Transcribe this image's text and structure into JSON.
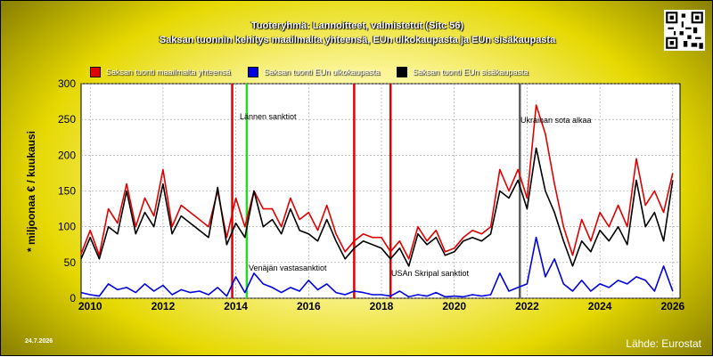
{
  "header": {
    "title": "Tuoteryhmä: Lannoitteet, valmistetut (Sitc 56)",
    "subtitle": "Saksan tuonnin kehitys maailmalta yhteensä, EUn ulkokaupasta ja EUn sisäkaupasta"
  },
  "footer": {
    "date": "24.7.2026",
    "source": "Lähde: Eurostat"
  },
  "colors": {
    "red": "#e00000",
    "blue": "#0000e0",
    "black": "#000000",
    "green": "#22dd22",
    "grey": "#606060"
  },
  "chart_data": {
    "type": "line",
    "ylabel": "* miljoonaa € / kuukausi",
    "ylim": [
      0,
      300
    ],
    "yticks": [
      0,
      50,
      100,
      150,
      200,
      250,
      300
    ],
    "xlim": [
      2009.75,
      2026.2
    ],
    "xticks": [
      2010,
      2012,
      2014,
      2016,
      2018,
      2020,
      2022,
      2024,
      2026
    ],
    "grid": true,
    "legend_position": "top",
    "series": [
      {
        "name": "Saksan tuonti maailmalta yhteensä",
        "color": "#e00000",
        "x": [
          2009.75,
          2010.0,
          2010.25,
          2010.5,
          2010.75,
          2011.0,
          2011.25,
          2011.5,
          2011.75,
          2012.0,
          2012.25,
          2012.5,
          2012.75,
          2013.0,
          2013.25,
          2013.5,
          2013.75,
          2014.0,
          2014.25,
          2014.5,
          2014.75,
          2015.0,
          2015.25,
          2015.5,
          2015.75,
          2016.0,
          2016.25,
          2016.5,
          2016.75,
          2017.0,
          2017.25,
          2017.5,
          2017.75,
          2018.0,
          2018.25,
          2018.5,
          2018.75,
          2019.0,
          2019.25,
          2019.5,
          2019.75,
          2020.0,
          2020.25,
          2020.5,
          2020.75,
          2021.0,
          2021.25,
          2021.5,
          2021.75,
          2022.0,
          2022.25,
          2022.5,
          2022.75,
          2023.0,
          2023.25,
          2023.5,
          2023.75,
          2024.0,
          2024.25,
          2024.5,
          2024.75,
          2025.0,
          2025.25,
          2025.5,
          2025.75,
          2026.0
        ],
        "values": [
          62,
          95,
          60,
          125,
          105,
          160,
          100,
          140,
          115,
          180,
          100,
          130,
          120,
          110,
          100,
          150,
          85,
          140,
          100,
          150,
          125,
          125,
          100,
          140,
          110,
          120,
          95,
          130,
          90,
          65,
          80,
          90,
          85,
          85,
          65,
          80,
          55,
          100,
          80,
          95,
          65,
          70,
          85,
          95,
          90,
          100,
          180,
          150,
          180,
          140,
          270,
          230,
          160,
          100,
          60,
          110,
          80,
          120,
          100,
          130,
          100,
          195,
          130,
          150,
          120,
          175
        ]
      },
      {
        "name": "Saksan tuonti EUn ulkokaupasta",
        "color": "#0000e0",
        "x": [
          2009.75,
          2010.0,
          2010.25,
          2010.5,
          2010.75,
          2011.0,
          2011.25,
          2011.5,
          2011.75,
          2012.0,
          2012.25,
          2012.5,
          2012.75,
          2013.0,
          2013.25,
          2013.5,
          2013.75,
          2014.0,
          2014.25,
          2014.5,
          2014.75,
          2015.0,
          2015.25,
          2015.5,
          2015.75,
          2016.0,
          2016.25,
          2016.5,
          2016.75,
          2017.0,
          2017.25,
          2017.5,
          2017.75,
          2018.0,
          2018.25,
          2018.5,
          2018.75,
          2019.0,
          2019.25,
          2019.5,
          2019.75,
          2020.0,
          2020.25,
          2020.5,
          2020.75,
          2021.0,
          2021.25,
          2021.5,
          2021.75,
          2022.0,
          2022.25,
          2022.5,
          2022.75,
          2023.0,
          2023.25,
          2023.5,
          2023.75,
          2024.0,
          2024.25,
          2024.5,
          2024.75,
          2025.0,
          2025.25,
          2025.5,
          2025.75,
          2026.0
        ],
        "values": [
          8,
          5,
          3,
          20,
          12,
          15,
          8,
          20,
          10,
          18,
          5,
          12,
          8,
          10,
          5,
          15,
          3,
          30,
          8,
          35,
          20,
          15,
          8,
          15,
          10,
          25,
          12,
          20,
          8,
          5,
          10,
          8,
          5,
          5,
          3,
          10,
          2,
          5,
          3,
          8,
          2,
          3,
          2,
          5,
          3,
          5,
          35,
          10,
          15,
          20,
          85,
          30,
          55,
          20,
          10,
          25,
          10,
          20,
          15,
          25,
          20,
          30,
          25,
          10,
          45,
          10
        ]
      },
      {
        "name": "Saksan tuonti EUn sisäkaupasta",
        "color": "#000000",
        "x": [
          2009.75,
          2010.0,
          2010.25,
          2010.5,
          2010.75,
          2011.0,
          2011.25,
          2011.5,
          2011.75,
          2012.0,
          2012.25,
          2012.5,
          2012.75,
          2013.0,
          2013.25,
          2013.5,
          2013.75,
          2014.0,
          2014.25,
          2014.5,
          2014.75,
          2015.0,
          2015.25,
          2015.5,
          2015.75,
          2016.0,
          2016.25,
          2016.5,
          2016.75,
          2017.0,
          2017.25,
          2017.5,
          2017.75,
          2018.0,
          2018.25,
          2018.5,
          2018.75,
          2019.0,
          2019.25,
          2019.5,
          2019.75,
          2020.0,
          2020.25,
          2020.5,
          2020.75,
          2021.0,
          2021.25,
          2021.5,
          2021.75,
          2022.0,
          2022.25,
          2022.5,
          2022.75,
          2023.0,
          2023.25,
          2023.5,
          2023.75,
          2024.0,
          2024.25,
          2024.5,
          2024.75,
          2025.0,
          2025.25,
          2025.5,
          2025.75,
          2026.0
        ],
        "values": [
          55,
          85,
          55,
          100,
          90,
          150,
          90,
          120,
          100,
          160,
          90,
          115,
          105,
          95,
          85,
          155,
          75,
          105,
          85,
          150,
          100,
          110,
          90,
          125,
          95,
          90,
          80,
          110,
          80,
          55,
          70,
          80,
          75,
          70,
          55,
          70,
          45,
          90,
          75,
          85,
          60,
          65,
          80,
          85,
          80,
          90,
          150,
          140,
          165,
          125,
          210,
          150,
          120,
          80,
          45,
          80,
          65,
          95,
          80,
          100,
          75,
          165,
          100,
          120,
          80,
          165
        ]
      }
    ],
    "events": [
      {
        "x": 2013.9,
        "color": "#e00000",
        "label": ""
      },
      {
        "x": 2014.3,
        "color": "#22dd22",
        "label": "Lännen sanktiot"
      },
      {
        "x": 2017.25,
        "color": "#e00000",
        "label": "Venäjän vastasanktiot"
      },
      {
        "x": 2018.25,
        "color": "#e00000",
        "label": "USAn Skripal sanktiot"
      },
      {
        "x": 2021.8,
        "color": "#606060",
        "label": "Ukrainan sota alkaa"
      }
    ]
  }
}
